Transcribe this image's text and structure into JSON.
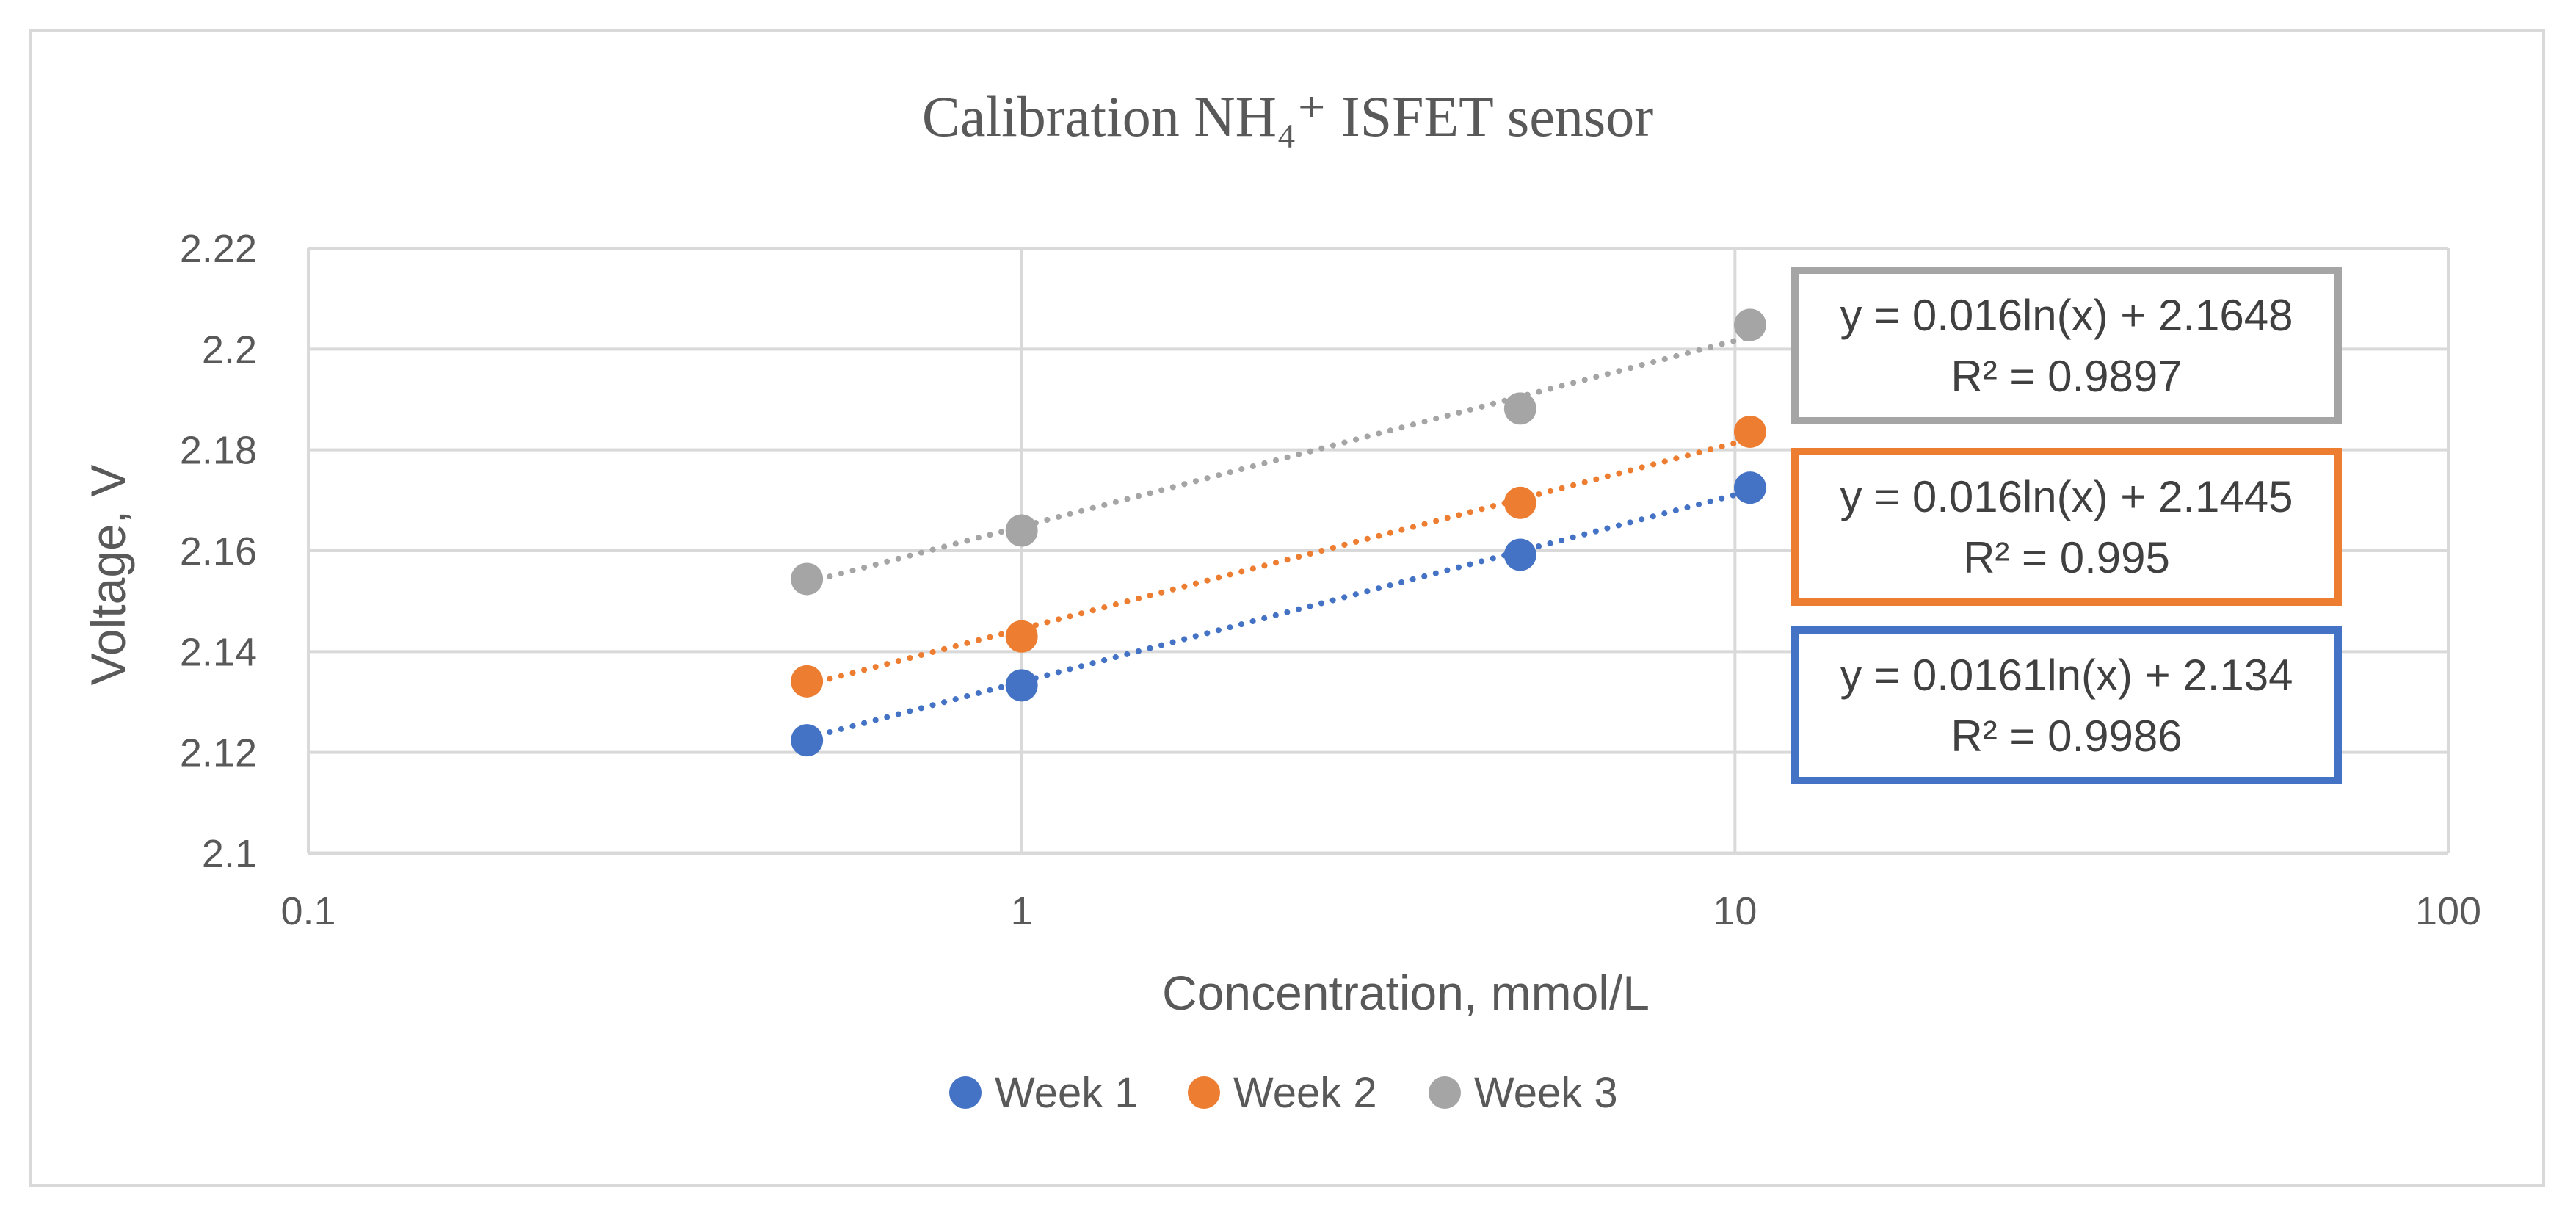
{
  "chart_data": {
    "type": "scatter",
    "title": "Calibration NH₄⁺ ISFET sensor",
    "xlabel": "Concentration, mmol/L",
    "ylabel": "Voltage, V",
    "x_scale": "log",
    "xlim": [
      0.1,
      100
    ],
    "ylim": [
      2.1,
      2.22
    ],
    "x_ticks": [
      "0.1",
      "1",
      "10",
      "100"
    ],
    "y_ticks": [
      "2.1",
      "2.12",
      "2.14",
      "2.16",
      "2.18",
      "2.2",
      "2.22"
    ],
    "grid": true,
    "legend_position": "bottom",
    "trendline": "logarithmic, dotted",
    "series": [
      {
        "name": "Week 1",
        "color": "#4472c4",
        "x": [
          0.5,
          1,
          5,
          10.5
        ],
        "y": [
          2.1224,
          2.1333,
          2.1592,
          2.1725
        ],
        "equation": "y = 0.0161ln(x) + 2.134",
        "r2": "R² = 0.9986",
        "fit": {
          "slope": 0.0161,
          "intercept": 2.134
        }
      },
      {
        "name": "Week 2",
        "color": "#ed7d31",
        "x": [
          0.5,
          1,
          5,
          10.5
        ],
        "y": [
          2.1341,
          2.143,
          2.1695,
          2.1836
        ],
        "equation": "y = 0.016ln(x) + 2.1445",
        "r2": "R² = 0.995",
        "fit": {
          "slope": 0.016,
          "intercept": 2.1445
        }
      },
      {
        "name": "Week 3",
        "color": "#a5a5a5",
        "x": [
          0.5,
          1,
          5,
          10.5
        ],
        "y": [
          2.1544,
          2.164,
          2.1882,
          2.2048
        ],
        "equation": "y = 0.016ln(x) + 2.1648",
        "r2": "R² = 0.9897",
        "fit": {
          "slope": 0.016,
          "intercept": 2.1648
        }
      }
    ]
  }
}
